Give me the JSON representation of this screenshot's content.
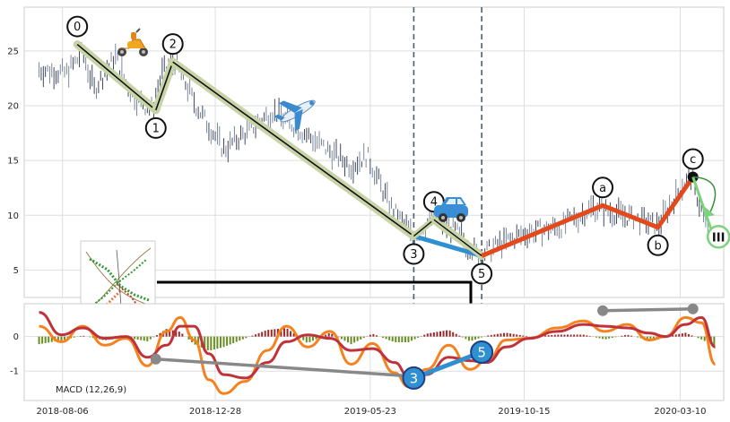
{
  "chart_data": [
    {
      "type": "candlestick",
      "panel": "price",
      "x_tick_labels": [
        "2018-08-06",
        "2018-12-28",
        "2019-05-23",
        "2019-10-15",
        "2020-03-10"
      ],
      "x_tick_dates": [
        "2018-08-06",
        "2018-12-28",
        "2019-05-23",
        "2019-10-15",
        "2020-03-10"
      ],
      "xlim": [
        "2018-07-01",
        "2020-04-20"
      ],
      "y_tick_labels": [
        "5",
        "10",
        "15",
        "20",
        "25"
      ],
      "ylim": [
        2.5,
        29
      ],
      "grid": true,
      "price_path": [
        {
          "date": "2018-07-15",
          "price": 23.3
        },
        {
          "date": "2018-08-10",
          "price": 23.0
        },
        {
          "date": "2018-08-25",
          "price": 24.8
        },
        {
          "date": "2018-09-05",
          "price": 21.5
        },
        {
          "date": "2018-09-25",
          "price": 24.5
        },
        {
          "date": "2018-10-10",
          "price": 21.0
        },
        {
          "date": "2018-10-30",
          "price": 19.5
        },
        {
          "date": "2018-11-08",
          "price": 23.0
        },
        {
          "date": "2018-11-20",
          "price": 24.0
        },
        {
          "date": "2018-12-10",
          "price": 20.0
        },
        {
          "date": "2019-01-05",
          "price": 16.0
        },
        {
          "date": "2019-01-25",
          "price": 17.5
        },
        {
          "date": "2019-02-20",
          "price": 19.5
        },
        {
          "date": "2019-03-15",
          "price": 18.0
        },
        {
          "date": "2019-04-05",
          "price": 16.5
        },
        {
          "date": "2019-05-05",
          "price": 14.5
        },
        {
          "date": "2019-05-20",
          "price": 15.5
        },
        {
          "date": "2019-06-10",
          "price": 11.0
        },
        {
          "date": "2019-07-02",
          "price": 8.0
        },
        {
          "date": "2019-07-20",
          "price": 9.8
        },
        {
          "date": "2019-08-12",
          "price": 8.5
        },
        {
          "date": "2019-09-02",
          "price": 6.3
        },
        {
          "date": "2019-09-25",
          "price": 7.5
        },
        {
          "date": "2019-10-20",
          "price": 8.5
        },
        {
          "date": "2019-11-20",
          "price": 9.0
        },
        {
          "date": "2019-12-20",
          "price": 10.8
        },
        {
          "date": "2020-01-15",
          "price": 10.0
        },
        {
          "date": "2020-02-05",
          "price": 9.5
        },
        {
          "date": "2020-02-18",
          "price": 9.0
        },
        {
          "date": "2020-03-10",
          "price": 12.5
        },
        {
          "date": "2020-03-20",
          "price": 13.5
        },
        {
          "date": "2020-04-05",
          "price": 8.8
        }
      ],
      "elliott_waves": [
        {
          "label": "0",
          "date": "2018-08-20",
          "price": 25.6
        },
        {
          "label": "1",
          "date": "2018-11-02",
          "price": 19.6
        },
        {
          "label": "2",
          "date": "2018-11-18",
          "price": 24.0
        },
        {
          "label": "3",
          "date": "2019-07-03",
          "price": 8.1
        },
        {
          "label": "4",
          "date": "2019-07-22",
          "price": 9.6
        },
        {
          "label": "5",
          "date": "2019-09-05",
          "price": 6.3
        }
      ],
      "abc_waves": [
        {
          "label": "a",
          "date": "2019-12-28",
          "price": 10.9
        },
        {
          "label": "b",
          "date": "2020-02-18",
          "price": 8.9
        },
        {
          "label": "c",
          "date": "2020-03-22",
          "price": 13.5
        }
      ],
      "projection_marker": {
        "label": "III",
        "date": "2020-04-10",
        "price": 8.2
      },
      "vertical_markers": [
        "2019-07-03",
        "2019-09-05"
      ],
      "icons": [
        "scooter-icon",
        "airplane-icon",
        "car-icon"
      ],
      "colors": {
        "impulse": "#111111",
        "impulse_glow": "#c8d4a8",
        "drop_35": "#2f8fd0",
        "abc": "#e4491c",
        "projection": "#7ed27e",
        "marker_line": "#4a6070"
      }
    },
    {
      "type": "line",
      "panel": "macd",
      "annotation": "MACD (12,26,9)",
      "y_tick_labels": [
        "-1",
        "0"
      ],
      "ylim": [
        -1.85,
        0.95
      ],
      "grid": true,
      "series": [
        {
          "color": "#f5821f",
          "points": [
            {
              "date": "2018-07-15",
              "value": 0.3
            },
            {
              "date": "2018-08-05",
              "value": -0.15
            },
            {
              "date": "2018-08-25",
              "value": 0.3
            },
            {
              "date": "2018-09-15",
              "value": -0.25
            },
            {
              "date": "2018-10-05",
              "value": -0.05
            },
            {
              "date": "2018-10-25",
              "value": -0.85
            },
            {
              "date": "2018-11-12",
              "value": 0.15
            },
            {
              "date": "2018-11-25",
              "value": 0.55
            },
            {
              "date": "2018-12-08",
              "value": -0.1
            },
            {
              "date": "2018-12-22",
              "value": -1.25
            },
            {
              "date": "2019-01-05",
              "value": -1.65
            },
            {
              "date": "2019-01-25",
              "value": -1.3
            },
            {
              "date": "2019-02-15",
              "value": -0.4
            },
            {
              "date": "2019-03-05",
              "value": 0.3
            },
            {
              "date": "2019-03-25",
              "value": -0.3
            },
            {
              "date": "2019-04-15",
              "value": 0.15
            },
            {
              "date": "2019-05-05",
              "value": -0.8
            },
            {
              "date": "2019-05-25",
              "value": -0.2
            },
            {
              "date": "2019-06-15",
              "value": -1.05
            },
            {
              "date": "2019-06-28",
              "value": -1.45
            },
            {
              "date": "2019-07-15",
              "value": -0.95
            },
            {
              "date": "2019-08-05",
              "value": -0.25
            },
            {
              "date": "2019-08-25",
              "value": -0.95
            },
            {
              "date": "2019-09-10",
              "value": -0.7
            },
            {
              "date": "2019-09-28",
              "value": -0.1
            },
            {
              "date": "2019-10-20",
              "value": -0.05
            },
            {
              "date": "2019-11-15",
              "value": 0.25
            },
            {
              "date": "2019-12-10",
              "value": 0.45
            },
            {
              "date": "2019-12-30",
              "value": 0.15
            },
            {
              "date": "2020-01-20",
              "value": 0.35
            },
            {
              "date": "2020-02-10",
              "value": -0.1
            },
            {
              "date": "2020-02-25",
              "value": 0.0
            },
            {
              "date": "2020-03-15",
              "value": 0.55
            },
            {
              "date": "2020-03-30",
              "value": 0.4
            },
            {
              "date": "2020-04-12",
              "value": -0.8
            }
          ]
        },
        {
          "color": "#c0323a",
          "points": [
            {
              "date": "2018-07-15",
              "value": 0.7
            },
            {
              "date": "2018-08-05",
              "value": 0.05
            },
            {
              "date": "2018-08-25",
              "value": 0.25
            },
            {
              "date": "2018-09-15",
              "value": -0.05
            },
            {
              "date": "2018-10-05",
              "value": 0.0
            },
            {
              "date": "2018-10-25",
              "value": -0.6
            },
            {
              "date": "2018-11-12",
              "value": -0.25
            },
            {
              "date": "2018-11-25",
              "value": 0.3
            },
            {
              "date": "2018-12-08",
              "value": 0.3
            },
            {
              "date": "2018-12-22",
              "value": -0.5
            },
            {
              "date": "2019-01-05",
              "value": -1.1
            },
            {
              "date": "2019-01-25",
              "value": -1.2
            },
            {
              "date": "2019-02-15",
              "value": -0.75
            },
            {
              "date": "2019-03-05",
              "value": -0.15
            },
            {
              "date": "2019-03-25",
              "value": 0.05
            },
            {
              "date": "2019-04-15",
              "value": -0.05
            },
            {
              "date": "2019-05-05",
              "value": -0.4
            },
            {
              "date": "2019-05-25",
              "value": -0.35
            },
            {
              "date": "2019-06-15",
              "value": -0.75
            },
            {
              "date": "2019-06-28",
              "value": -1.15
            },
            {
              "date": "2019-07-15",
              "value": -1.1
            },
            {
              "date": "2019-08-05",
              "value": -0.6
            },
            {
              "date": "2019-08-25",
              "value": -0.7
            },
            {
              "date": "2019-09-10",
              "value": -0.75
            },
            {
              "date": "2019-09-28",
              "value": -0.3
            },
            {
              "date": "2019-10-20",
              "value": -0.05
            },
            {
              "date": "2019-11-15",
              "value": 0.15
            },
            {
              "date": "2019-12-10",
              "value": 0.35
            },
            {
              "date": "2019-12-30",
              "value": 0.3
            },
            {
              "date": "2020-01-20",
              "value": 0.25
            },
            {
              "date": "2020-02-10",
              "value": 0.1
            },
            {
              "date": "2020-02-25",
              "value": 0.0
            },
            {
              "date": "2020-03-15",
              "value": 0.35
            },
            {
              "date": "2020-03-30",
              "value": 0.55
            },
            {
              "date": "2020-04-12",
              "value": -0.3
            }
          ]
        }
      ],
      "histogram_colors": {
        "positive": "#9b2a2a",
        "negative": "#6b8e23"
      },
      "divergence_lines": [
        {
          "from": {
            "date": "2018-11-02",
            "value": -0.65
          },
          "to": {
            "date": "2019-07-03",
            "value": -1.15
          },
          "color": "#888888"
        },
        {
          "from": {
            "date": "2019-12-28",
            "value": 0.75
          },
          "to": {
            "date": "2020-03-22",
            "value": 0.8
          },
          "color": "#888888"
        }
      ],
      "wave_markers": [
        {
          "label": "3",
          "date": "2019-07-03",
          "value": -1.2,
          "color": "#2f8fd0"
        },
        {
          "label": "5",
          "date": "2019-09-05",
          "value": -0.45,
          "color": "#2f8fd0"
        }
      ]
    }
  ]
}
